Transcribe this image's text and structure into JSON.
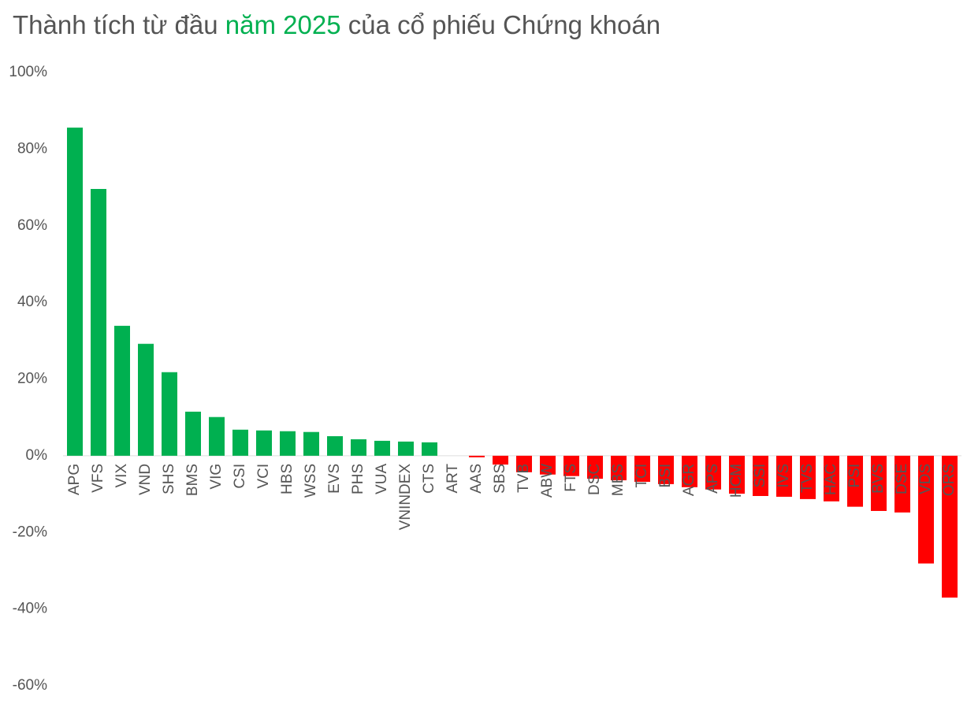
{
  "chart_data": {
    "type": "bar",
    "title": [
      "Thành tích từ đầu",
      "năm 2025",
      "của cổ phiếu Chứng khoán"
    ],
    "title_highlight_color": "#00b050",
    "categories": [
      "APG",
      "VFS",
      "VIX",
      "VND",
      "SHS",
      "BMS",
      "VIG",
      "CSI",
      "VCI",
      "HBS",
      "WSS",
      "EVS",
      "PHS",
      "VUA",
      "VNINDEX",
      "CTS",
      "ART",
      "AAS",
      "SBS",
      "TVB",
      "ABW",
      "FTS",
      "DSC",
      "MBS",
      "TCI",
      "BSI",
      "AGR",
      "APS",
      "HCM",
      "SSI",
      "IVS",
      "TVS",
      "HAC",
      "PSI",
      "BVS",
      "DSE",
      "VDS",
      "ORS"
    ],
    "values": [
      85.6,
      69.6,
      33.9,
      29.2,
      21.8,
      11.5,
      10.1,
      6.8,
      6.6,
      6.4,
      6.2,
      5.1,
      4.3,
      3.9,
      3.7,
      3.5,
      0,
      -0.4,
      -2.3,
      -4.3,
      -4.9,
      -5.3,
      -6.0,
      -6.4,
      -6.8,
      -7.4,
      -8.2,
      -8.8,
      -9.9,
      -10.5,
      -10.7,
      -11.3,
      -11.9,
      -13.3,
      -14.4,
      -14.8,
      -28.1,
      -37.0
    ],
    "positive_color": "#00b050",
    "negative_color": "#ff0000",
    "ylim": [
      -60,
      100
    ],
    "yticks": [
      {
        "value": -60,
        "label": "-60%"
      },
      {
        "value": -40,
        "label": "-40%"
      },
      {
        "value": -20,
        "label": "-20%"
      },
      {
        "value": 0,
        "label": "0%"
      },
      {
        "value": 20,
        "label": "20%"
      },
      {
        "value": 40,
        "label": "40%"
      },
      {
        "value": 60,
        "label": "60%"
      },
      {
        "value": 80,
        "label": "80%"
      },
      {
        "value": 100,
        "label": "100%"
      }
    ],
    "grid": false
  }
}
